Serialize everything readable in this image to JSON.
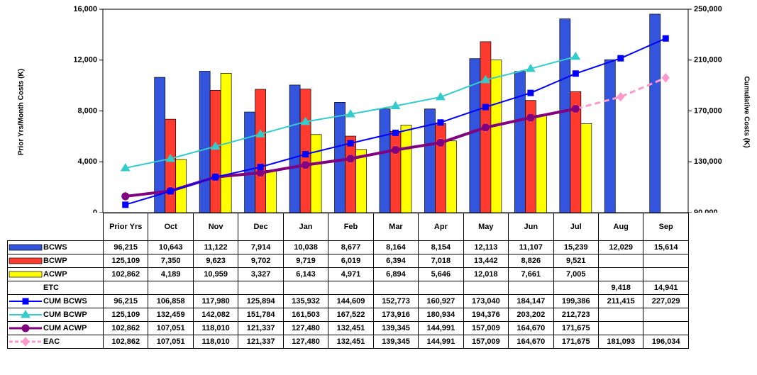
{
  "chart_data": {
    "type": "combo",
    "y_label": "Prior Yrs/Month Costs (K)",
    "y2_label": "Cumulative Costs (K)",
    "categories": [
      "Prior Yrs",
      "Oct",
      "Nov",
      "Dec",
      "Jan",
      "Feb",
      "Mar",
      "Apr",
      "May",
      "Jun",
      "Jul",
      "Aug",
      "Sep"
    ],
    "ylim": [
      0,
      16000
    ],
    "yticks": [
      {
        "value": 0,
        "label": "0"
      },
      {
        "value": 4000,
        "label": "4,000"
      },
      {
        "value": 8000,
        "label": "8,000"
      },
      {
        "value": 12000,
        "label": "12,000"
      },
      {
        "value": 16000,
        "label": "16,000"
      }
    ],
    "y2lim": [
      90000,
      250000
    ],
    "y2ticks": [
      {
        "value": 90000,
        "label": "90,000"
      },
      {
        "value": 130000,
        "label": "130,000"
      },
      {
        "value": 170000,
        "label": "170,000"
      },
      {
        "value": 210000,
        "label": "210,000"
      },
      {
        "value": 250000,
        "label": "250,000"
      }
    ],
    "series": [
      {
        "name": "BCWS",
        "type": "bar",
        "color": "#3355dd",
        "values": [
          96215,
          10643,
          11122,
          7914,
          10038,
          8677,
          8164,
          8154,
          12113,
          11107,
          15239,
          12029,
          15614
        ],
        "value_labels": [
          "96,215",
          "10,643",
          "11,122",
          "7,914",
          "10,038",
          "8,677",
          "8,164",
          "8,154",
          "12,113",
          "11,107",
          "15,239",
          "12,029",
          "15,614"
        ]
      },
      {
        "name": "BCWP",
        "type": "bar",
        "color": "#ff3b30",
        "values": [
          125109,
          7350,
          9623,
          9702,
          9719,
          6019,
          6394,
          7018,
          13442,
          8826,
          9521,
          null,
          null
        ],
        "value_labels": [
          "125,109",
          "7,350",
          "9,623",
          "9,702",
          "9,719",
          "6,019",
          "6,394",
          "7,018",
          "13,442",
          "8,826",
          "9,521",
          null,
          null
        ]
      },
      {
        "name": "ACWP",
        "type": "bar",
        "color": "#ffff00",
        "values": [
          102862,
          4189,
          10959,
          3327,
          6143,
          4971,
          6894,
          5646,
          12018,
          7661,
          7005,
          null,
          null
        ],
        "value_labels": [
          "102,862",
          "4,189",
          "10,959",
          "3,327",
          "6,143",
          "4,971",
          "6,894",
          "5,646",
          "12,018",
          "7,661",
          "7,005",
          null,
          null
        ]
      },
      {
        "name": "ETC",
        "values": [
          null,
          null,
          null,
          null,
          null,
          null,
          null,
          null,
          null,
          null,
          null,
          9418,
          14941
        ],
        "value_labels": [
          null,
          null,
          null,
          null,
          null,
          null,
          null,
          null,
          null,
          null,
          null,
          "9,418",
          "14,941"
        ]
      },
      {
        "name": "CUM BCWS",
        "type": "line",
        "axis": "y2",
        "color": "#0000ff",
        "marker": "square",
        "line_width": 2,
        "values": [
          96215,
          106858,
          117980,
          125894,
          135932,
          144609,
          152773,
          160927,
          173040,
          184147,
          199386,
          211415,
          227029
        ],
        "value_labels": [
          "96,215",
          "106,858",
          "117,980",
          "125,894",
          "135,932",
          "144,609",
          "152,773",
          "160,927",
          "173,040",
          "184,147",
          "199,386",
          "211,415",
          "227,029"
        ]
      },
      {
        "name": "CUM BCWP",
        "type": "line",
        "axis": "y2",
        "color": "#33cccc",
        "marker": "triangle",
        "line_width": 2,
        "values": [
          125109,
          132459,
          142082,
          151784,
          161503,
          167522,
          173916,
          180934,
          194376,
          203202,
          212723,
          null,
          null
        ],
        "value_labels": [
          "125,109",
          "132,459",
          "142,082",
          "151,784",
          "161,503",
          "167,522",
          "173,916",
          "180,934",
          "194,376",
          "203,202",
          "212,723",
          null,
          null
        ]
      },
      {
        "name": "CUM ACWP",
        "type": "line",
        "axis": "y2",
        "color": "#800080",
        "marker": "circle",
        "line_width": 4,
        "values": [
          102862,
          107051,
          118010,
          121337,
          127480,
          132451,
          139345,
          144991,
          157009,
          164670,
          171675,
          null,
          null
        ],
        "value_labels": [
          "102,862",
          "107,051",
          "118,010",
          "121,337",
          "127,480",
          "132,451",
          "139,345",
          "144,991",
          "157,009",
          "164,670",
          "171,675",
          null,
          null
        ]
      },
      {
        "name": "EAC",
        "type": "line",
        "axis": "y2",
        "color": "#ff99cc",
        "marker": "diamond",
        "line_width": 3,
        "dashed": true,
        "values": [
          102862,
          107051,
          118010,
          121337,
          127480,
          132451,
          139345,
          144991,
          157009,
          164670,
          171675,
          181093,
          196034
        ],
        "value_labels": [
          "102,862",
          "107,051",
          "118,010",
          "121,337",
          "127,480",
          "132,451",
          "139,345",
          "144,991",
          "157,009",
          "164,670",
          "171,675",
          "181,093",
          "196,034"
        ]
      }
    ]
  }
}
